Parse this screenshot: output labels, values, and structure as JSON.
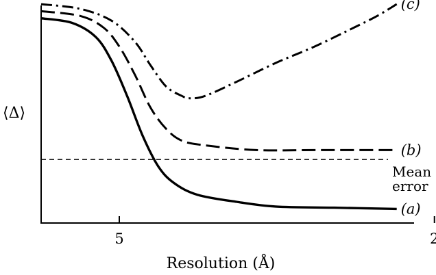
{
  "chart_data": {
    "type": "line",
    "title": "",
    "xlabel": "Resolution (Å)",
    "ylabel": "⟨Δ⟩",
    "x_axis_note": "inverse resolution axis; resolution decreases (in Å) from left to right",
    "x_ticks": [
      {
        "label": "5",
        "value": 5
      },
      {
        "label": "2",
        "value": 2
      }
    ],
    "y_ticks": [],
    "grid": false,
    "reference_line": {
      "label_line1": "Mean",
      "label_line2": "error",
      "style": "short dash",
      "relative_level": 0.27
    },
    "series": [
      {
        "name": "(c)",
        "style": "dash-dot",
        "points": [
          [
            0.0,
            0.93
          ],
          [
            0.1,
            0.91
          ],
          [
            0.18,
            0.86
          ],
          [
            0.24,
            0.77
          ],
          [
            0.28,
            0.67
          ],
          [
            0.32,
            0.58
          ],
          [
            0.36,
            0.54
          ],
          [
            0.38,
            0.53
          ],
          [
            0.42,
            0.54
          ],
          [
            0.5,
            0.6
          ],
          [
            0.6,
            0.68
          ],
          [
            0.7,
            0.75
          ],
          [
            0.8,
            0.83
          ],
          [
            0.86,
            0.88
          ],
          [
            0.91,
            0.93
          ]
        ]
      },
      {
        "name": "(b)",
        "style": "long dash",
        "points": [
          [
            0.0,
            0.9
          ],
          [
            0.1,
            0.88
          ],
          [
            0.16,
            0.83
          ],
          [
            0.2,
            0.75
          ],
          [
            0.24,
            0.63
          ],
          [
            0.28,
            0.49
          ],
          [
            0.32,
            0.4
          ],
          [
            0.36,
            0.35
          ],
          [
            0.42,
            0.33
          ],
          [
            0.55,
            0.31
          ],
          [
            0.7,
            0.31
          ],
          [
            0.91,
            0.31
          ]
        ]
      },
      {
        "name": "(a)",
        "style": "solid",
        "points": [
          [
            0.0,
            0.87
          ],
          [
            0.08,
            0.85
          ],
          [
            0.14,
            0.79
          ],
          [
            0.18,
            0.69
          ],
          [
            0.22,
            0.54
          ],
          [
            0.26,
            0.37
          ],
          [
            0.3,
            0.24
          ],
          [
            0.34,
            0.17
          ],
          [
            0.4,
            0.12
          ],
          [
            0.5,
            0.09
          ],
          [
            0.6,
            0.07
          ],
          [
            0.75,
            0.065
          ],
          [
            0.91,
            0.06
          ]
        ]
      }
    ]
  }
}
